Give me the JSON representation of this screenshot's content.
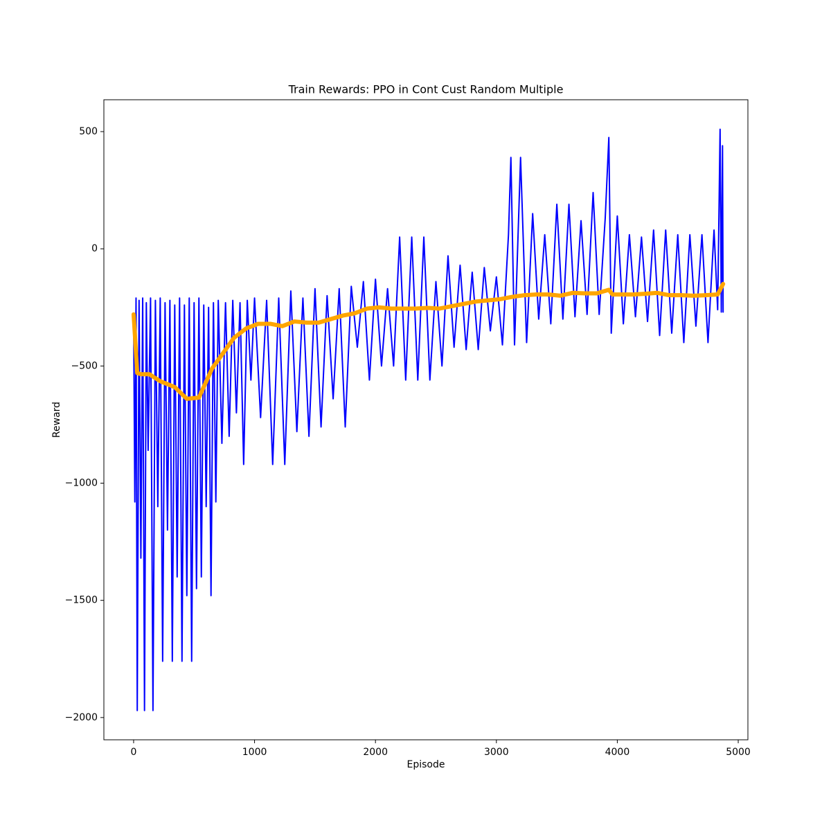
{
  "chart_data": {
    "type": "line",
    "title": "Train Rewards: PPO in Cont Cust Random Multiple",
    "x_label": "Episode",
    "y_label": "Reward",
    "xlim": [
      -246,
      5080
    ],
    "ylim": [
      -2095,
      636
    ],
    "xticks": [
      0,
      1000,
      2000,
      3000,
      4000,
      5000
    ],
    "yticks": [
      {
        "value": -2000,
        "label": "−2000"
      },
      {
        "value": -1500,
        "label": "−1500"
      },
      {
        "value": -1000,
        "label": "−1000"
      },
      {
        "value": -500,
        "label": "−500"
      },
      0,
      500
    ],
    "grid": false,
    "series": [
      {
        "color": "#0000ff",
        "width": 2,
        "x": [
          0,
          10,
          20,
          30,
          45,
          60,
          75,
          90,
          105,
          120,
          140,
          160,
          180,
          200,
          220,
          240,
          260,
          280,
          300,
          320,
          340,
          360,
          380,
          400,
          420,
          440,
          460,
          480,
          500,
          520,
          540,
          560,
          580,
          600,
          620,
          640,
          660,
          680,
          700,
          730,
          760,
          790,
          820,
          850,
          880,
          910,
          940,
          970,
          1000,
          1050,
          1100,
          1150,
          1200,
          1250,
          1300,
          1350,
          1400,
          1450,
          1500,
          1550,
          1600,
          1650,
          1700,
          1750,
          1800,
          1850,
          1900,
          1950,
          2000,
          2050,
          2100,
          2150,
          2200,
          2250,
          2300,
          2350,
          2400,
          2450,
          2500,
          2550,
          2600,
          2650,
          2700,
          2750,
          2800,
          2850,
          2900,
          2950,
          3000,
          3050,
          3100,
          3120,
          3150,
          3200,
          3250,
          3300,
          3350,
          3400,
          3450,
          3500,
          3550,
          3600,
          3650,
          3700,
          3750,
          3800,
          3850,
          3900,
          3930,
          3950,
          4000,
          4050,
          4100,
          4150,
          4200,
          4250,
          4300,
          4350,
          4400,
          4450,
          4500,
          4550,
          4600,
          4650,
          4700,
          4750,
          4800,
          4830,
          4850,
          4860,
          4870,
          4875
        ],
        "values": [
          -280,
          -1080,
          -210,
          -1970,
          -220,
          -1320,
          -210,
          -1970,
          -230,
          -860,
          -210,
          -1970,
          -220,
          -1100,
          -210,
          -1760,
          -230,
          -1200,
          -220,
          -1760,
          -240,
          -1400,
          -210,
          -1760,
          -240,
          -1480,
          -210,
          -1760,
          -230,
          -1450,
          -210,
          -1400,
          -240,
          -1100,
          -250,
          -1480,
          -230,
          -1080,
          -220,
          -830,
          -230,
          -800,
          -220,
          -700,
          -230,
          -920,
          -220,
          -560,
          -210,
          -720,
          -220,
          -920,
          -210,
          -920,
          -180,
          -780,
          -210,
          -800,
          -170,
          -760,
          -200,
          -640,
          -170,
          -760,
          -160,
          -420,
          -140,
          -560,
          -130,
          -500,
          -170,
          -500,
          50,
          -560,
          50,
          -560,
          50,
          -560,
          -140,
          -500,
          -30,
          -420,
          -70,
          -430,
          -100,
          -430,
          -80,
          -350,
          -120,
          -410,
          60,
          390,
          -410,
          390,
          -400,
          150,
          -300,
          60,
          -320,
          190,
          -300,
          190,
          -290,
          120,
          -280,
          240,
          -280,
          130,
          475,
          -360,
          140,
          -320,
          60,
          -290,
          50,
          -310,
          80,
          -370,
          80,
          -360,
          60,
          -400,
          60,
          -330,
          60,
          -400,
          80,
          -260,
          510,
          -270,
          440,
          -270
        ]
      },
      {
        "color": "#ffa500",
        "width": 6,
        "x": [
          0,
          30,
          60,
          130,
          220,
          340,
          440,
          540,
          650,
          830,
          930,
          1030,
          1130,
          1230,
          1330,
          1430,
          1530,
          1630,
          1730,
          1830,
          1930,
          2030,
          2130,
          2230,
          2330,
          2430,
          2530,
          2630,
          2730,
          2830,
          2930,
          3030,
          3130,
          3230,
          3330,
          3430,
          3530,
          3630,
          3730,
          3830,
          3930,
          3960,
          4030,
          4130,
          4230,
          4330,
          4430,
          4530,
          4630,
          4730,
          4830,
          4875
        ],
        "values": [
          -280,
          -530,
          -535,
          -535,
          -565,
          -590,
          -640,
          -635,
          -510,
          -380,
          -340,
          -320,
          -320,
          -330,
          -310,
          -315,
          -315,
          -300,
          -285,
          -275,
          -255,
          -250,
          -255,
          -255,
          -255,
          -252,
          -255,
          -245,
          -235,
          -225,
          -220,
          -215,
          -205,
          -198,
          -195,
          -195,
          -200,
          -188,
          -190,
          -190,
          -175,
          -195,
          -195,
          -195,
          -192,
          -188,
          -198,
          -198,
          -200,
          -198,
          -195,
          -150
        ]
      }
    ]
  }
}
